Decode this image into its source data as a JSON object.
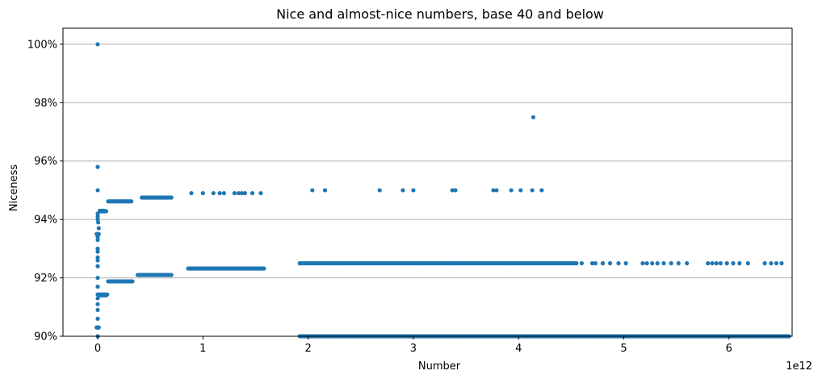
{
  "chart_data": {
    "type": "scatter",
    "title": "Nice and almost-nice numbers, base 40 and below",
    "xlabel": "Number",
    "ylabel": "Niceness",
    "x_offset_label": "1e12",
    "xlim": [
      -0.33,
      6.6
    ],
    "ylim": [
      0.9,
      1.0055
    ],
    "x_ticks": [
      0,
      1,
      2,
      3,
      4,
      5,
      6
    ],
    "x_tick_labels": [
      "0",
      "1",
      "2",
      "3",
      "4",
      "5",
      "6"
    ],
    "y_ticks": [
      0.9,
      0.92,
      0.94,
      0.96,
      0.98,
      1.0
    ],
    "y_tick_labels": [
      "90%",
      "92%",
      "94%",
      "96%",
      "98%",
      "100%"
    ],
    "grid": "y",
    "marker_color": "#1f77b4",
    "x_unit_note": "x values in units of 1e12",
    "series": [
      {
        "values_note": "single points",
        "points": [
          [
            0.0,
            1.0
          ],
          [
            0.0,
            0.958
          ],
          [
            0.0,
            0.95
          ],
          [
            0.0,
            0.942
          ],
          [
            0.0,
            0.941
          ],
          [
            0.0,
            0.94
          ],
          [
            0.005,
            0.939
          ],
          [
            0.01,
            0.937
          ],
          [
            0.0,
            0.934
          ],
          [
            0.0,
            0.933
          ],
          [
            0.0,
            0.93
          ],
          [
            0.0,
            0.929
          ],
          [
            0.0,
            0.927
          ],
          [
            0.0,
            0.926
          ],
          [
            0.0,
            0.924
          ],
          [
            0.0,
            0.92
          ],
          [
            0.0,
            0.917
          ],
          [
            0.0,
            0.913
          ],
          [
            0.0,
            0.911
          ],
          [
            0.0,
            0.909
          ],
          [
            0.0,
            0.906
          ],
          [
            0.0,
            0.903
          ],
          [
            0.0,
            0.9
          ],
          [
            0.02,
            0.943
          ],
          [
            0.02,
            0.914
          ],
          [
            0.04,
            0.943
          ],
          [
            0.04,
            0.914
          ],
          [
            0.06,
            0.943
          ],
          [
            0.06,
            0.914
          ],
          [
            0.08,
            0.914
          ],
          [
            4.14,
            0.975
          ],
          [
            0.89,
            0.949
          ],
          [
            1.0,
            0.949
          ],
          [
            1.1,
            0.949
          ],
          [
            1.16,
            0.949
          ],
          [
            1.2,
            0.949
          ],
          [
            1.3,
            0.949
          ],
          [
            1.34,
            0.949
          ],
          [
            1.37,
            0.949
          ],
          [
            1.4,
            0.949
          ],
          [
            1.47,
            0.949
          ],
          [
            1.55,
            0.949
          ],
          [
            2.04,
            0.95
          ],
          [
            2.16,
            0.95
          ],
          [
            2.68,
            0.95
          ],
          [
            2.9,
            0.95
          ],
          [
            3.0,
            0.95
          ],
          [
            3.37,
            0.95
          ],
          [
            3.4,
            0.95
          ],
          [
            3.76,
            0.95
          ],
          [
            3.79,
            0.95
          ],
          [
            3.93,
            0.95
          ],
          [
            4.02,
            0.95
          ],
          [
            4.13,
            0.95
          ],
          [
            4.22,
            0.95
          ],
          [
            4.6,
            0.925
          ],
          [
            4.7,
            0.925
          ],
          [
            4.73,
            0.925
          ],
          [
            4.8,
            0.925
          ],
          [
            4.87,
            0.925
          ],
          [
            4.95,
            0.925
          ],
          [
            5.02,
            0.925
          ],
          [
            5.18,
            0.925
          ],
          [
            5.22,
            0.925
          ],
          [
            5.27,
            0.925
          ],
          [
            5.32,
            0.925
          ],
          [
            5.38,
            0.925
          ],
          [
            5.45,
            0.925
          ],
          [
            5.52,
            0.925
          ],
          [
            5.6,
            0.925
          ],
          [
            5.8,
            0.925
          ],
          [
            5.84,
            0.925
          ],
          [
            5.88,
            0.925
          ],
          [
            5.92,
            0.925
          ],
          [
            5.98,
            0.925
          ],
          [
            6.04,
            0.925
          ],
          [
            6.1,
            0.925
          ],
          [
            6.18,
            0.925
          ],
          [
            6.34,
            0.925
          ],
          [
            6.4,
            0.925
          ],
          [
            6.45,
            0.925
          ],
          [
            6.5,
            0.925
          ]
        ]
      },
      {
        "values_note": "dense runs of points: [x_start, x_end, y]",
        "runs": [
          [
            -0.01,
            0.01,
            0.903
          ],
          [
            -0.01,
            0.01,
            0.935
          ],
          [
            0.0,
            0.09,
            0.9143
          ],
          [
            0.1,
            0.33,
            0.9188
          ],
          [
            0.02,
            0.08,
            0.9428
          ],
          [
            0.1,
            0.32,
            0.9462
          ],
          [
            0.38,
            0.7,
            0.921
          ],
          [
            0.42,
            0.7,
            0.9475
          ],
          [
            0.86,
            1.58,
            0.9232
          ],
          [
            1.92,
            4.55,
            0.925
          ],
          [
            1.92,
            6.57,
            0.9
          ]
        ]
      }
    ]
  }
}
